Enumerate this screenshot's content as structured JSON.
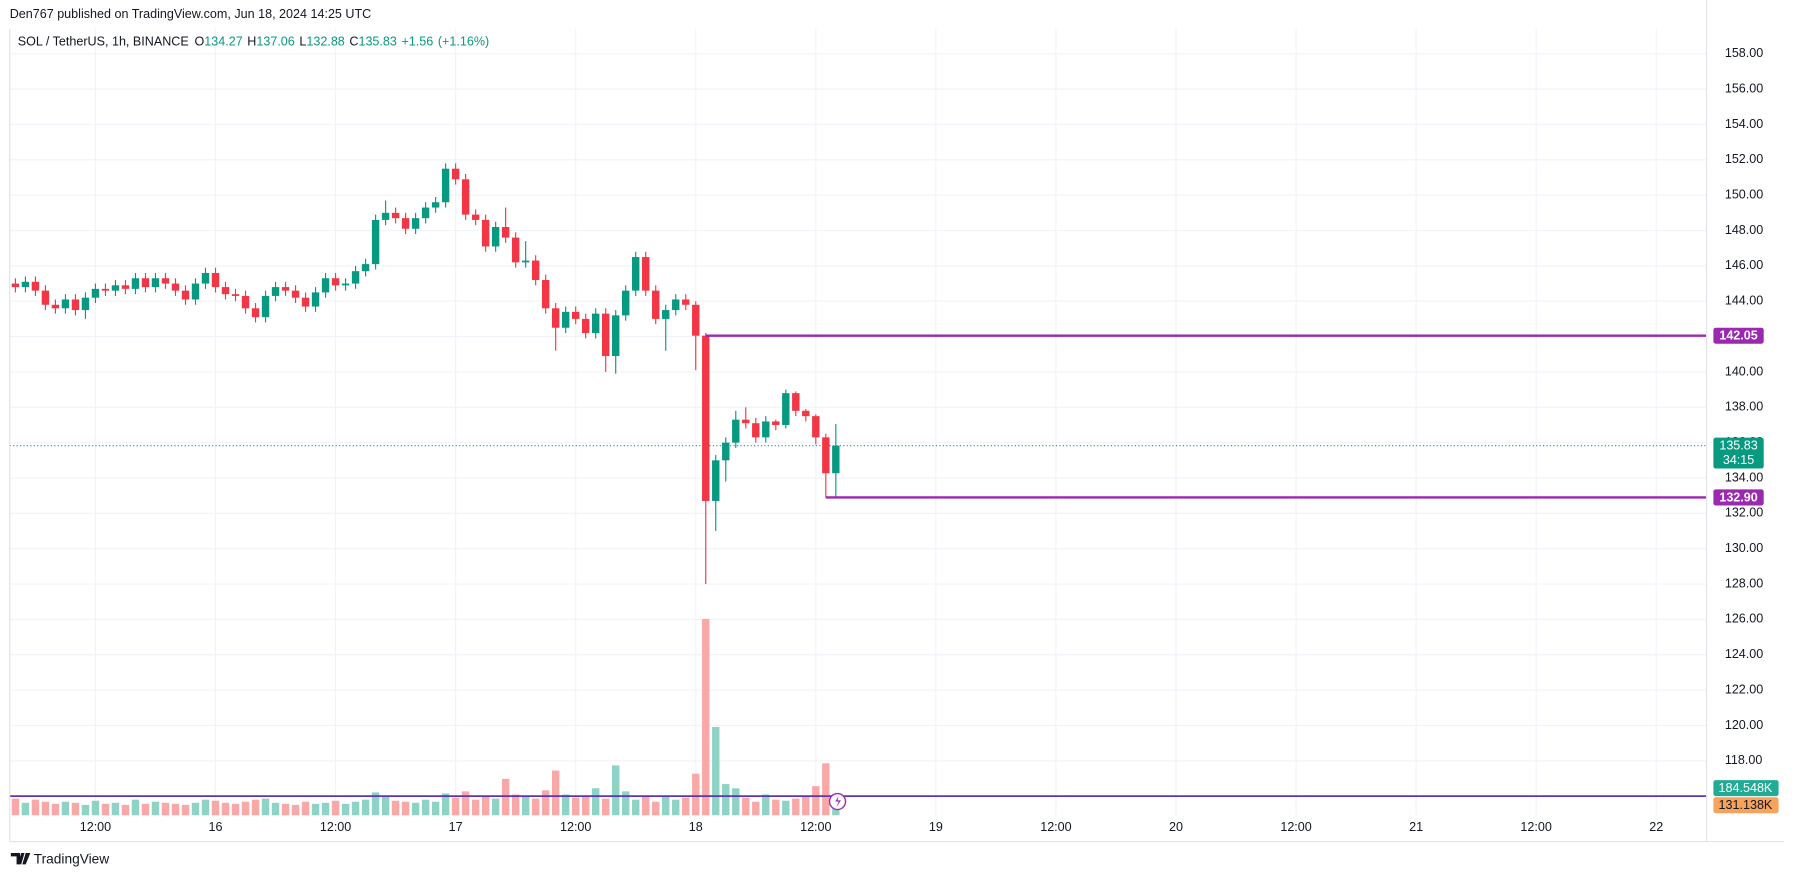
{
  "header": {
    "publisher": "Den767 published on TradingView.com, Jun 18, 2024 14:25 UTC"
  },
  "footer": {
    "brand": "TradingView"
  },
  "chart_data": {
    "type": "candlestick",
    "title": "SOL / TetherUS, 1h, BINANCE",
    "ohlc_legend": [
      {
        "key": "O",
        "value": 134.27
      },
      {
        "key": "H",
        "value": 137.06
      },
      {
        "key": "L",
        "value": 132.88
      },
      {
        "key": "C",
        "value": 135.83
      }
    ],
    "change": [
      {
        "value": 1.56,
        "label": "+1.56"
      },
      {
        "value": 1.16,
        "label": "(+1.16%)"
      }
    ],
    "up_color": "#089981",
    "down_color": "#f23645",
    "volume_up_color": "#8fd3c7",
    "volume_down_color": "#f9a8a8",
    "grid": true,
    "xlim": [
      -0.57,
      168.8
    ],
    "xticks": [
      {
        "value": 8,
        "label": "12:00"
      },
      {
        "value": 20,
        "label": "16"
      },
      {
        "value": 32,
        "label": "12:00"
      },
      {
        "value": 44,
        "label": "17"
      },
      {
        "value": 56,
        "label": "12:00"
      },
      {
        "value": 68,
        "label": "18"
      },
      {
        "value": 80,
        "label": "12:00"
      },
      {
        "value": 92,
        "label": "19"
      },
      {
        "value": 104,
        "label": "12:00"
      },
      {
        "value": 116,
        "label": "20"
      },
      {
        "value": 128,
        "label": "12:00"
      },
      {
        "value": 140,
        "label": "21"
      },
      {
        "value": 152,
        "label": "12:00"
      },
      {
        "value": 164,
        "label": "22"
      }
    ],
    "ylim": [
      114.92,
      159.36
    ],
    "yticks": [
      {
        "value": 118,
        "label": "118.00"
      },
      {
        "value": 120,
        "label": "120.00"
      },
      {
        "value": 122,
        "label": "122.00"
      },
      {
        "value": 124,
        "label": "124.00"
      },
      {
        "value": 126,
        "label": "126.00"
      },
      {
        "value": 128,
        "label": "128.00"
      },
      {
        "value": 130,
        "label": "130.00"
      },
      {
        "value": 132,
        "label": "132.00"
      },
      {
        "value": 134,
        "label": "134.00"
      },
      {
        "value": 136,
        "label": "136.00"
      },
      {
        "value": 138,
        "label": "138.00"
      },
      {
        "value": 140,
        "label": "140.00"
      },
      {
        "value": 142,
        "label": "142.00"
      },
      {
        "value": 144,
        "label": "144.00"
      },
      {
        "value": 146,
        "label": "146.00"
      },
      {
        "value": 148,
        "label": "148.00"
      },
      {
        "value": 150,
        "label": "150.00"
      },
      {
        "value": 152,
        "label": "152.00"
      },
      {
        "value": 154,
        "label": "154.00"
      },
      {
        "value": 156,
        "label": "156.00"
      },
      {
        "value": 158,
        "label": "158.00"
      }
    ],
    "open": [
      145.0,
      144.8,
      145.1,
      144.6,
      143.8,
      143.6,
      144.1,
      143.5,
      144.2,
      144.7,
      144.6,
      144.9,
      144.7,
      145.3,
      144.8,
      145.3,
      145.0,
      144.6,
      144.1,
      145.0,
      145.6,
      144.8,
      144.4,
      144.3,
      143.6,
      143.1,
      144.3,
      144.8,
      144.6,
      144.2,
      143.7,
      144.5,
      145.3,
      144.9,
      145.0,
      145.7,
      146.1,
      148.6,
      149.0,
      148.7,
      148.1,
      148.7,
      149.3,
      149.6,
      151.5,
      150.9,
      148.9,
      148.6,
      147.1,
      148.2,
      147.6,
      146.2,
      146.3,
      145.2,
      143.6,
      142.5,
      143.4,
      143.0,
      142.2,
      143.3,
      140.9,
      143.2,
      144.6,
      146.5,
      144.6,
      143.0,
      143.5,
      144.1,
      143.8,
      142.05,
      132.7,
      135.0,
      136.0,
      137.3,
      137.1,
      136.3,
      137.2,
      137.0,
      138.8,
      137.8,
      137.5,
      136.3,
      134.27
    ],
    "high": [
      145.3,
      145.4,
      145.4,
      144.9,
      144.1,
      144.4,
      144.4,
      144.5,
      145.0,
      145.0,
      145.2,
      145.2,
      145.6,
      145.6,
      145.6,
      145.6,
      145.3,
      144.9,
      145.3,
      145.9,
      145.9,
      145.1,
      144.7,
      144.6,
      143.9,
      144.6,
      145.1,
      145.1,
      144.9,
      144.5,
      144.8,
      145.6,
      145.6,
      145.3,
      146.0,
      146.4,
      148.9,
      149.7,
      149.3,
      149.0,
      149.0,
      149.6,
      149.9,
      151.8,
      151.8,
      151.2,
      149.2,
      148.9,
      148.5,
      149.3,
      147.9,
      147.4,
      146.6,
      145.5,
      143.9,
      143.7,
      143.7,
      143.3,
      143.6,
      143.6,
      143.5,
      144.9,
      146.8,
      146.8,
      144.9,
      143.8,
      144.4,
      144.4,
      144.0,
      142.2,
      135.3,
      136.3,
      137.8,
      138.0,
      137.4,
      137.5,
      137.3,
      139.0,
      138.9,
      137.9,
      137.6,
      136.5,
      137.06
    ],
    "low": [
      144.5,
      144.5,
      144.3,
      143.5,
      143.3,
      143.3,
      143.2,
      143.0,
      143.9,
      144.3,
      144.3,
      144.4,
      144.4,
      144.5,
      144.5,
      144.7,
      144.3,
      143.8,
      143.8,
      144.7,
      144.5,
      144.1,
      144.0,
      143.3,
      142.8,
      142.8,
      144.0,
      144.3,
      143.9,
      143.4,
      143.4,
      144.2,
      144.6,
      144.6,
      144.7,
      145.4,
      145.8,
      148.3,
      148.4,
      147.8,
      147.8,
      148.4,
      149.0,
      149.3,
      150.6,
      148.6,
      148.3,
      146.8,
      146.8,
      147.3,
      145.9,
      145.9,
      144.9,
      143.3,
      141.2,
      142.2,
      142.7,
      141.9,
      141.9,
      140.0,
      139.9,
      142.9,
      144.3,
      144.3,
      142.7,
      141.2,
      143.2,
      143.5,
      140.1,
      128.0,
      131.0,
      133.8,
      135.7,
      136.8,
      136.0,
      136.0,
      136.7,
      136.8,
      137.5,
      137.2,
      135.9,
      132.9,
      132.88
    ],
    "close": [
      144.8,
      145.1,
      144.6,
      143.8,
      143.6,
      144.1,
      143.5,
      144.2,
      144.7,
      144.6,
      144.9,
      144.7,
      145.3,
      144.8,
      145.3,
      145.0,
      144.6,
      144.1,
      145.0,
      145.6,
      144.8,
      144.4,
      144.3,
      143.6,
      143.1,
      144.3,
      144.8,
      144.6,
      144.2,
      143.7,
      144.5,
      145.3,
      144.9,
      145.0,
      145.7,
      146.1,
      148.6,
      149.0,
      148.7,
      148.1,
      148.7,
      149.3,
      149.6,
      151.5,
      150.9,
      148.9,
      148.6,
      147.1,
      148.2,
      147.6,
      146.2,
      146.3,
      145.2,
      143.6,
      142.5,
      143.4,
      143.0,
      142.2,
      143.3,
      140.9,
      143.2,
      144.6,
      146.5,
      144.6,
      143.0,
      143.5,
      144.1,
      143.8,
      142.05,
      132.7,
      135.0,
      136.0,
      137.3,
      137.1,
      136.3,
      137.2,
      137.0,
      138.8,
      137.8,
      137.5,
      136.3,
      134.27,
      135.83
    ],
    "volume": [
      160000,
      120000,
      150000,
      130000,
      110000,
      130000,
      120000,
      100000,
      140000,
      110000,
      120000,
      100000,
      150000,
      110000,
      130000,
      120000,
      110000,
      100000,
      120000,
      150000,
      140000,
      120000,
      110000,
      130000,
      150000,
      160000,
      120000,
      110000,
      100000,
      130000,
      110000,
      120000,
      140000,
      110000,
      130000,
      150000,
      220000,
      190000,
      140000,
      130000,
      120000,
      150000,
      130000,
      210000,
      170000,
      230000,
      150000,
      180000,
      160000,
      350000,
      200000,
      180000,
      160000,
      240000,
      430000,
      200000,
      170000,
      180000,
      260000,
      160000,
      480000,
      230000,
      150000,
      180000,
      130000,
      190000,
      150000,
      170000,
      400000,
      1890000,
      850000,
      300000,
      260000,
      170000,
      130000,
      200000,
      150000,
      140000,
      160000,
      190000,
      280000,
      500000,
      131138
    ],
    "volume_ylim": [
      0,
      7560000
    ],
    "last_volume_label": "131.138K",
    "volume_line": {
      "value": 184548,
      "label": "184.548K",
      "color": "#5e35b1"
    },
    "horizontal_lines": [
      {
        "value": 142.05,
        "start": 69,
        "color": "#9c27b0"
      },
      {
        "value": 132.9,
        "label": "132.90",
        "start": 81,
        "color": "#9c27b0"
      }
    ],
    "last_price": {
      "value": 135.83,
      "countdown": "34:15"
    }
  }
}
